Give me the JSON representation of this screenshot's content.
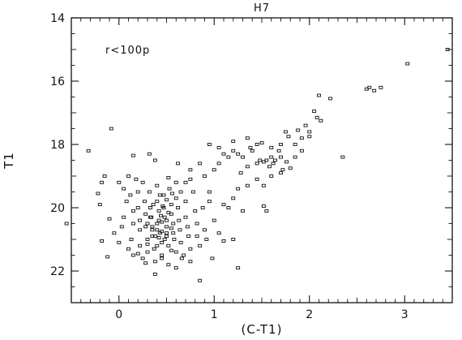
{
  "chart_data": {
    "type": "scatter",
    "title": "H7",
    "xlabel": "(C-T1)",
    "ylabel": "T1",
    "annotation": "r<100p",
    "xlim": [
      -0.5,
      3.5
    ],
    "ylim": [
      14,
      23
    ],
    "y_inverted": true,
    "grid": false,
    "marker": "open-square",
    "x_ticks": [
      0,
      1,
      2,
      3
    ],
    "x_tick_labels": [
      "0",
      "1",
      "2",
      "3"
    ],
    "y_ticks": [
      14,
      16,
      18,
      20,
      22
    ],
    "y_tick_labels": [
      "14",
      "16",
      "18",
      "20",
      "22"
    ],
    "series": [
      {
        "points": [
          [
            3.45,
            15.0
          ],
          [
            3.03,
            15.45
          ],
          [
            2.75,
            16.2
          ],
          [
            2.68,
            16.3
          ],
          [
            2.63,
            16.2
          ],
          [
            2.6,
            16.25
          ],
          [
            2.22,
            16.55
          ],
          [
            2.1,
            16.45
          ],
          [
            2.05,
            16.95
          ],
          [
            2.08,
            17.15
          ],
          [
            2.12,
            17.25
          ],
          [
            1.96,
            17.4
          ],
          [
            2.0,
            17.6
          ],
          [
            2.0,
            17.75
          ],
          [
            1.88,
            17.55
          ],
          [
            1.78,
            17.75
          ],
          [
            1.75,
            17.6
          ],
          [
            1.7,
            18.0
          ],
          [
            1.68,
            18.2
          ],
          [
            1.6,
            18.1
          ],
          [
            1.85,
            18.0
          ],
          [
            1.92,
            17.8
          ],
          [
            1.5,
            17.95
          ],
          [
            1.6,
            18.4
          ],
          [
            1.55,
            18.5
          ],
          [
            1.52,
            18.55
          ],
          [
            1.48,
            18.5
          ],
          [
            1.45,
            18.6
          ],
          [
            1.62,
            18.6
          ],
          [
            1.64,
            18.5
          ],
          [
            1.58,
            18.7
          ],
          [
            1.7,
            18.4
          ],
          [
            1.76,
            18.55
          ],
          [
            1.8,
            18.75
          ],
          [
            1.72,
            18.8
          ],
          [
            1.35,
            18.7
          ],
          [
            1.3,
            18.4
          ],
          [
            1.25,
            18.3
          ],
          [
            1.4,
            18.2
          ],
          [
            1.38,
            18.1
          ],
          [
            1.2,
            18.2
          ],
          [
            1.15,
            18.4
          ],
          [
            1.1,
            18.3
          ],
          [
            1.05,
            18.6
          ],
          [
            1.0,
            18.8
          ],
          [
            1.28,
            18.9
          ],
          [
            1.45,
            19.1
          ],
          [
            1.35,
            19.3
          ],
          [
            1.52,
            19.3
          ],
          [
            1.52,
            19.95
          ],
          [
            1.55,
            20.1
          ],
          [
            1.25,
            19.4
          ],
          [
            1.2,
            19.7
          ],
          [
            1.15,
            20.0
          ],
          [
            0.95,
            19.5
          ],
          [
            0.9,
            19.0
          ],
          [
            0.85,
            18.6
          ],
          [
            0.75,
            18.8
          ],
          [
            0.7,
            19.2
          ],
          [
            0.65,
            19.5
          ],
          [
            1.35,
            17.8
          ],
          [
            1.2,
            17.9
          ],
          [
            1.05,
            18.1
          ],
          [
            0.95,
            18.0
          ],
          [
            1.45,
            18.0
          ],
          [
            2.35,
            18.4
          ],
          [
            1.92,
            18.2
          ],
          [
            1.85,
            18.4
          ],
          [
            1.6,
            19.0
          ],
          [
            1.7,
            18.9
          ],
          [
            -0.32,
            18.2
          ],
          [
            -0.08,
            17.5
          ],
          [
            0.15,
            18.35
          ],
          [
            0.32,
            18.3
          ],
          [
            0.38,
            18.5
          ],
          [
            0.62,
            18.6
          ],
          [
            -0.55,
            20.5
          ],
          [
            -0.2,
            19.9
          ],
          [
            -0.22,
            19.55
          ],
          [
            -0.18,
            19.2
          ],
          [
            -0.15,
            19.0
          ],
          [
            -0.1,
            20.35
          ],
          [
            -0.05,
            20.8
          ],
          [
            -0.18,
            21.05
          ],
          [
            -0.12,
            21.55
          ],
          [
            0.0,
            19.2
          ],
          [
            0.05,
            19.4
          ],
          [
            0.08,
            19.8
          ],
          [
            0.05,
            20.3
          ],
          [
            0.03,
            20.6
          ],
          [
            0.0,
            21.1
          ],
          [
            0.1,
            19.0
          ],
          [
            0.12,
            19.6
          ],
          [
            0.15,
            20.1
          ],
          [
            0.15,
            20.5
          ],
          [
            0.13,
            21.0
          ],
          [
            0.15,
            21.5
          ],
          [
            0.1,
            21.3
          ],
          [
            0.2,
            19.5
          ],
          [
            0.2,
            20.0
          ],
          [
            0.22,
            20.4
          ],
          [
            0.22,
            20.7
          ],
          [
            0.22,
            21.2
          ],
          [
            0.25,
            21.6
          ],
          [
            0.25,
            19.2
          ],
          [
            0.27,
            19.8
          ],
          [
            0.28,
            20.2
          ],
          [
            0.28,
            20.6
          ],
          [
            0.3,
            21.0
          ],
          [
            0.3,
            21.4
          ],
          [
            0.32,
            19.5
          ],
          [
            0.33,
            20.0
          ],
          [
            0.33,
            20.3
          ],
          [
            0.35,
            20.7
          ],
          [
            0.35,
            20.9
          ],
          [
            0.37,
            21.3
          ],
          [
            0.38,
            21.7
          ],
          [
            0.38,
            22.1
          ],
          [
            0.4,
            19.3
          ],
          [
            0.4,
            19.8
          ],
          [
            0.42,
            20.1
          ],
          [
            0.42,
            20.4
          ],
          [
            0.43,
            20.8
          ],
          [
            0.45,
            21.1
          ],
          [
            0.45,
            21.5
          ],
          [
            0.47,
            19.6
          ],
          [
            0.47,
            20.0
          ],
          [
            0.48,
            20.3
          ],
          [
            0.5,
            20.6
          ],
          [
            0.5,
            20.9
          ],
          [
            0.52,
            21.2
          ],
          [
            0.52,
            21.8
          ],
          [
            0.53,
            19.4
          ],
          [
            0.55,
            19.9
          ],
          [
            0.55,
            20.2
          ],
          [
            0.57,
            20.5
          ],
          [
            0.57,
            20.8
          ],
          [
            0.58,
            21.0
          ],
          [
            0.6,
            21.4
          ],
          [
            0.6,
            19.7
          ],
          [
            0.62,
            20.0
          ],
          [
            0.63,
            20.4
          ],
          [
            0.64,
            20.7
          ],
          [
            0.65,
            21.1
          ],
          [
            0.68,
            21.5
          ],
          [
            0.7,
            19.8
          ],
          [
            0.7,
            20.3
          ],
          [
            0.72,
            20.6
          ],
          [
            0.73,
            20.9
          ],
          [
            0.75,
            21.3
          ],
          [
            0.78,
            19.5
          ],
          [
            0.8,
            20.1
          ],
          [
            0.82,
            20.5
          ],
          [
            0.82,
            20.9
          ],
          [
            0.85,
            21.2
          ],
          [
            0.88,
            20.0
          ],
          [
            0.9,
            20.7
          ],
          [
            0.92,
            21.0
          ],
          [
            0.95,
            19.8
          ],
          [
            1.0,
            20.4
          ],
          [
            1.05,
            20.8
          ],
          [
            0.3,
            20.5
          ],
          [
            0.35,
            20.6
          ],
          [
            0.4,
            20.5
          ],
          [
            0.45,
            20.45
          ],
          [
            0.5,
            20.4
          ],
          [
            0.4,
            20.7
          ],
          [
            0.45,
            20.75
          ],
          [
            0.5,
            20.8
          ],
          [
            0.55,
            20.65
          ],
          [
            0.38,
            20.9
          ],
          [
            0.42,
            20.95
          ],
          [
            0.48,
            21.0
          ],
          [
            0.34,
            20.3
          ],
          [
            0.44,
            20.25
          ],
          [
            0.52,
            20.15
          ],
          [
            0.46,
            19.95
          ],
          [
            0.36,
            19.9
          ],
          [
            0.5,
            19.75
          ],
          [
            0.43,
            19.6
          ],
          [
            0.56,
            19.55
          ],
          [
            0.3,
            21.15
          ],
          [
            0.4,
            21.2
          ],
          [
            0.55,
            21.35
          ],
          [
            0.66,
            21.6
          ],
          [
            0.75,
            21.7
          ],
          [
            0.2,
            21.45
          ],
          [
            0.28,
            21.75
          ],
          [
            0.45,
            21.6
          ],
          [
            0.85,
            22.3
          ],
          [
            0.6,
            21.9
          ],
          [
            1.1,
            21.05
          ],
          [
            1.2,
            21.0
          ],
          [
            1.3,
            20.1
          ],
          [
            1.1,
            19.9
          ],
          [
            1.25,
            21.9
          ],
          [
            0.98,
            21.6
          ],
          [
            0.18,
            19.1
          ],
          [
            0.6,
            19.2
          ],
          [
            0.75,
            19.1
          ],
          [
            0.52,
            19.05
          ]
        ]
      }
    ]
  }
}
